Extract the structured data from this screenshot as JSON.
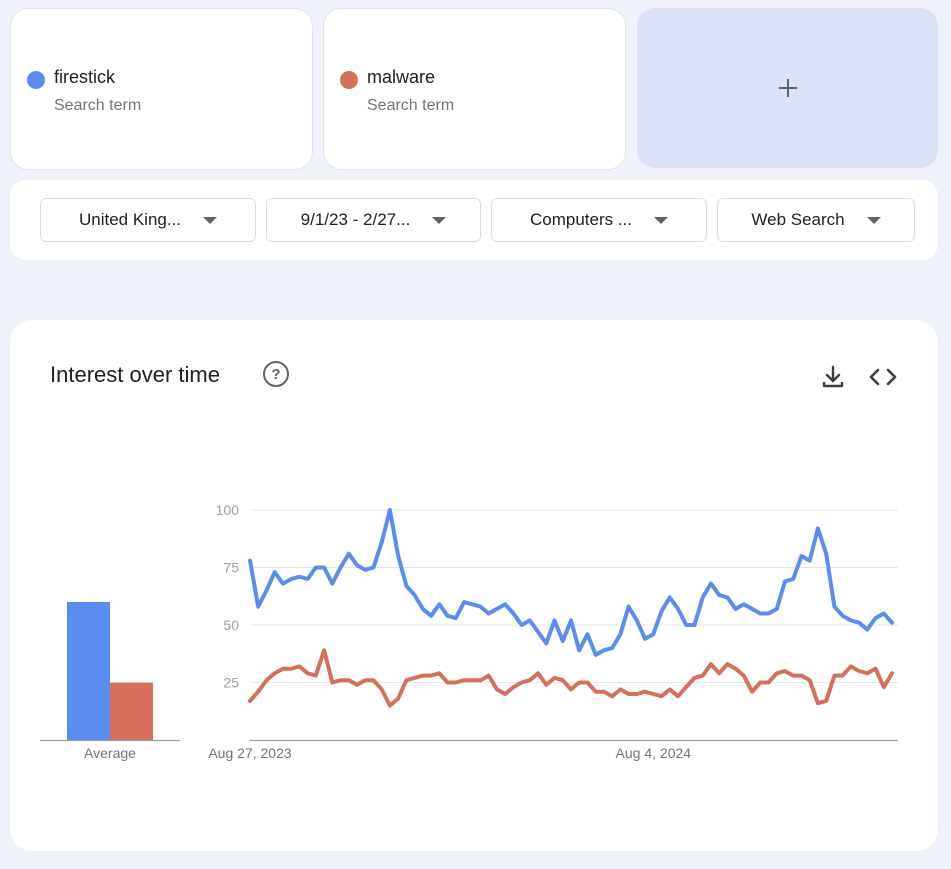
{
  "terms": [
    {
      "name": "firestick",
      "type": "Search term",
      "color": "#5b8cf0"
    },
    {
      "name": "malware",
      "type": "Search term",
      "color": "#d4705c"
    }
  ],
  "add_term": {
    "icon": "plus-icon"
  },
  "filters": {
    "region": "United King...",
    "date_range": "9/1/23 - 2/27...",
    "category": "Computers ...",
    "search_type": "Web Search"
  },
  "interest": {
    "title": "Interest over time",
    "help_icon": "help-circle-icon",
    "download_icon": "download-icon",
    "embed_icon": "embed-code-icon",
    "help_glyph": "?"
  },
  "chart_data": {
    "type": "line",
    "title": "Interest over time",
    "xlabel": "",
    "ylabel": "",
    "ylim": [
      0,
      100
    ],
    "yticks": [
      25,
      50,
      75,
      100
    ],
    "x_tick_labels": [
      "Aug 27, 2023",
      "Aug 4, 2024"
    ],
    "x_tick_index": [
      0,
      49
    ],
    "grid": true,
    "average": {
      "label": "Average",
      "values": [
        60,
        25
      ]
    },
    "series": [
      {
        "name": "firestick",
        "color": "#5b8cf0",
        "values": [
          78,
          58,
          65,
          73,
          68,
          70,
          71,
          70,
          75,
          75,
          68,
          75,
          81,
          76,
          74,
          75,
          86,
          100,
          80,
          67,
          63,
          57,
          54,
          59,
          54,
          53,
          60,
          59,
          58,
          55,
          57,
          59,
          55,
          50,
          52,
          47,
          42,
          52,
          43,
          52,
          39,
          46,
          37,
          39,
          40,
          46,
          58,
          52,
          44,
          46,
          56,
          62,
          57,
          50,
          50,
          62,
          68,
          63,
          62,
          57,
          59,
          57,
          55,
          55,
          57,
          69,
          70,
          80,
          78,
          92,
          81,
          58,
          54,
          52,
          51,
          48,
          53,
          55,
          51
        ]
      },
      {
        "name": "malware",
        "color": "#d4705c",
        "values": [
          17,
          21,
          26,
          29,
          31,
          31,
          32,
          29,
          28,
          39,
          25,
          26,
          26,
          24,
          26,
          26,
          22,
          15,
          18,
          26,
          27,
          28,
          28,
          29,
          25,
          25,
          26,
          26,
          26,
          28,
          22,
          20,
          23,
          25,
          26,
          29,
          24,
          27,
          26,
          22,
          25,
          25,
          21,
          21,
          19,
          22,
          20,
          20,
          21,
          20,
          19,
          22,
          19,
          23,
          27,
          28,
          33,
          29,
          33,
          31,
          28,
          21,
          25,
          25,
          29,
          30,
          28,
          28,
          26,
          16,
          17,
          28,
          28,
          32,
          30,
          29,
          31,
          23,
          29
        ]
      }
    ]
  }
}
